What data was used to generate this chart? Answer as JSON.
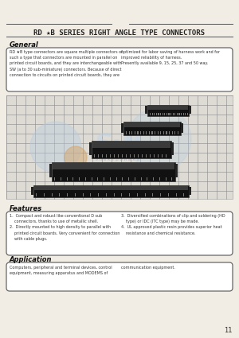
{
  "bg_color": "#f2ede4",
  "title": "RD ★B SERIES RIGHT ANGLE TYPE CONNECTORS",
  "title_fontsize": 6.5,
  "line_color": "#555555",
  "section_general": "General",
  "general_text_left": "RD ★B type connectors are square multiple connectors of\nsuch a type that connectors are mounted in parallel on\nprinted circuit boards, and they are interchangeable with\nSW (a to 30 sub-miniature) connectors. Because of direct\nconnection to circuits on printed circuit boards, they are",
  "general_text_right": "optimized for labor saving of harness work and for\nimproved reliability of harness.\nPresently available 9, 15, 25, 37 and 50 way.",
  "section_features": "Features",
  "features_text_left": "1.  Compact and robust like conventional D sub\n    connectors, thanks to use of metallic shell.\n2.  Directly mounted to high density to parallel with\n    printed circuit boards. Very convenient for connection\n    with cable plugs.",
  "features_text_right": "3.  Diversified combinations of clip and soldering (HD\n    type) or IDC (ITC type) may be made.\n4.  UL approved plastic resin provides superior heat\n    resistance and chemical resistance.",
  "section_application": "Application",
  "application_text": "Computers, peripheral and terminal devices, control\nequipment, measuring apparatus and MODEMS of",
  "application_text_right": "communication equipment.",
  "page_number": "11",
  "box_color": "#ffffff",
  "box_edge_color": "#666666",
  "photo_bg": "#e8e4dc",
  "grid_color": "#999999",
  "watermark_color": "#c0d4e8",
  "watermark_text_color": "#8899bb"
}
